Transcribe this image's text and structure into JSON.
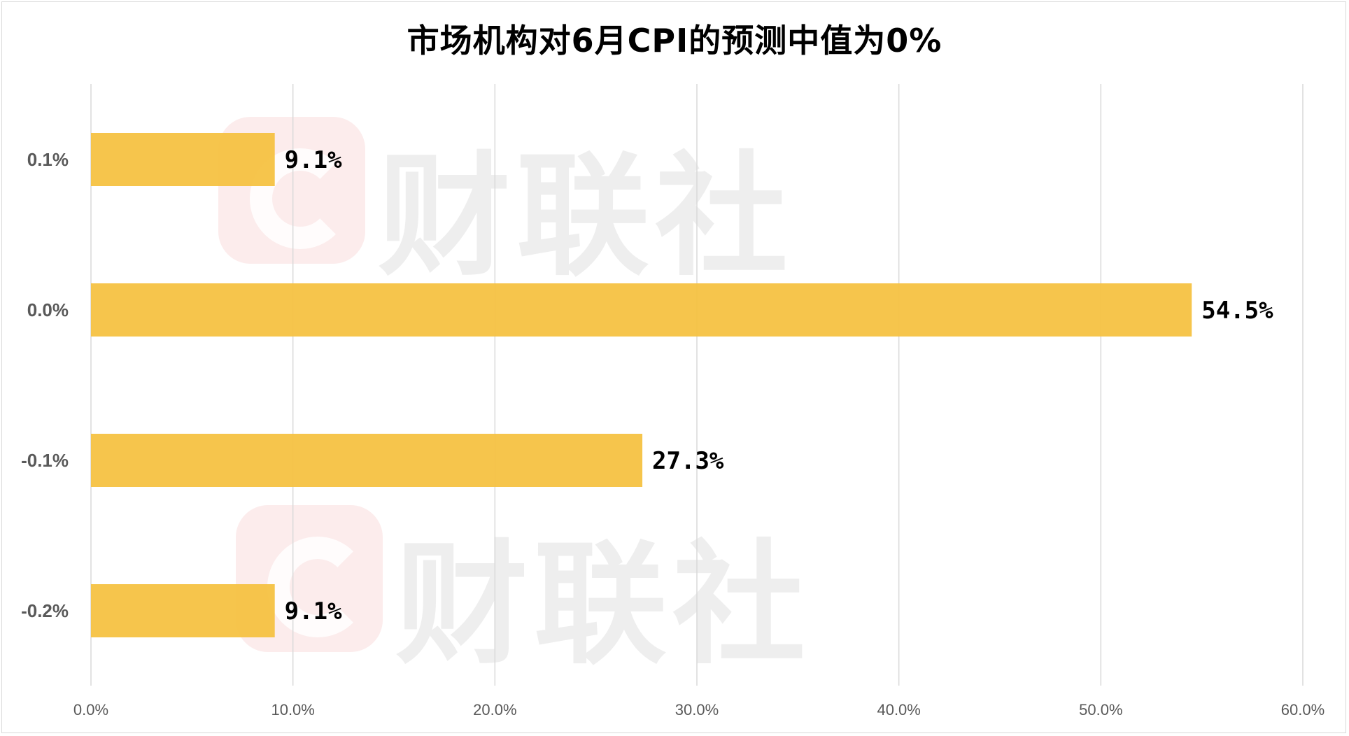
{
  "chart_data": {
    "type": "bar",
    "orientation": "horizontal",
    "title": "市场机构对6月CPI的预测中值为0%",
    "categories": [
      "0.1%",
      "0.0%",
      "-0.1%",
      "-0.2%"
    ],
    "values": [
      9.1,
      54.5,
      27.3,
      9.1
    ],
    "data_labels": [
      "9.1%",
      "54.5%",
      "27.3%",
      "9.1%"
    ],
    "x_ticks": [
      "0.0%",
      "10.0%",
      "20.0%",
      "30.0%",
      "40.0%",
      "50.0%",
      "60.0%"
    ],
    "xlim": [
      0,
      60
    ],
    "xlabel": "",
    "ylabel": "",
    "grid": "vertical",
    "legend": "none",
    "bar_color": "#F5C242",
    "grid_color": "#d9d9d9"
  },
  "watermark": {
    "text": "财联社",
    "logo_color": "#f6c8c8"
  }
}
